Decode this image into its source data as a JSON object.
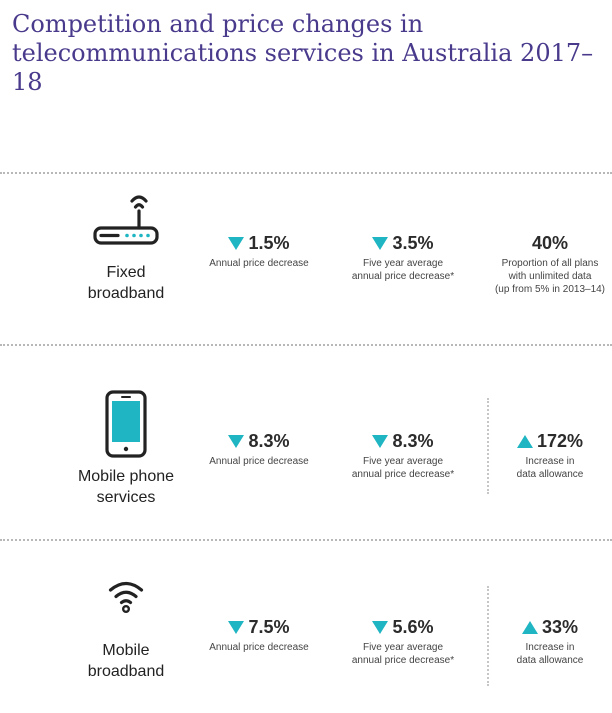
{
  "title": "Competition and price changes in telecommunications services in Australia 2017–18",
  "accent_color": "#4a3a8c",
  "arrow_color": "#1fb5c2",
  "rows": [
    {
      "icon": "router-icon",
      "name": "Fixed\nbroadband",
      "stats": [
        {
          "direction": "down",
          "value": "1.5%",
          "desc": "Annual price decrease"
        },
        {
          "direction": "down",
          "value": "3.5%",
          "desc": "Five year average\nannual price decrease*"
        },
        {
          "direction": "none",
          "value": "40%",
          "desc": "Proportion of all plans\nwith unlimited data\n(up from 5% in 2013–14)"
        }
      ]
    },
    {
      "icon": "mobile-phone-icon",
      "name": "Mobile phone\nservices",
      "stats": [
        {
          "direction": "down",
          "value": "8.3%",
          "desc": "Annual price decrease"
        },
        {
          "direction": "down",
          "value": "8.3%",
          "desc": "Five year average\nannual price decrease*"
        },
        {
          "direction": "up",
          "value": "172%",
          "desc": "Increase in\ndata allowance"
        }
      ]
    },
    {
      "icon": "wifi-icon",
      "name": "Mobile\nbroadband",
      "stats": [
        {
          "direction": "down",
          "value": "7.5%",
          "desc": "Annual price decrease"
        },
        {
          "direction": "down",
          "value": "5.6%",
          "desc": "Five year average\nannual price decrease*"
        },
        {
          "direction": "up",
          "value": "33%",
          "desc": "Increase in\ndata allowance"
        }
      ]
    }
  ]
}
